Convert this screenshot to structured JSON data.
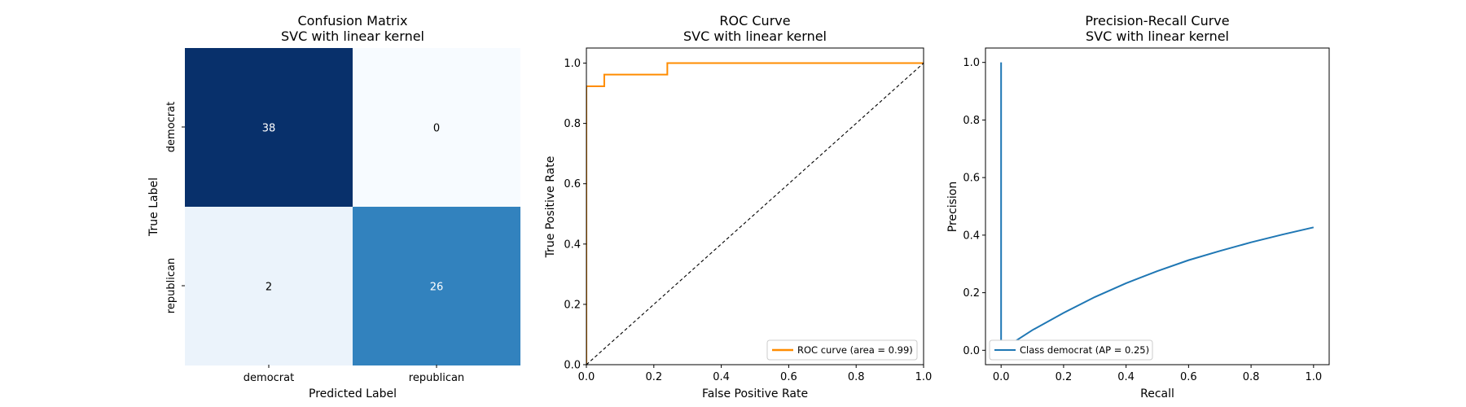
{
  "chart_data": [
    {
      "type": "heatmap",
      "title": "Confusion Matrix",
      "subtitle": "SVC with linear kernel",
      "xlabel": "Predicted Label",
      "ylabel": "True Label",
      "x_categories": [
        "democrat",
        "republican"
      ],
      "y_categories": [
        "democrat",
        "republican"
      ],
      "values": [
        [
          38,
          0
        ],
        [
          2,
          26
        ]
      ],
      "colormap": "Blues",
      "colors": {
        "38": "#08306b",
        "0": "#f7fbff",
        "2": "#ebf3fb",
        "26": "#3282be"
      }
    },
    {
      "type": "line",
      "title": "ROC Curve",
      "subtitle": "SVC with linear kernel",
      "xlabel": "False Positive Rate",
      "ylabel": "True Positive Rate",
      "xlim": [
        0.0,
        1.0
      ],
      "ylim": [
        0.0,
        1.05
      ],
      "xticks": [
        "0.0",
        "0.2",
        "0.4",
        "0.6",
        "0.8",
        "1.0"
      ],
      "yticks": [
        "0.0",
        "0.2",
        "0.4",
        "0.6",
        "0.8",
        "1.0"
      ],
      "series": [
        {
          "name": "ROC curve (area = 0.99)",
          "color": "#ff8c00",
          "x": [
            0.0,
            0.0,
            0.0,
            0.0,
            0.053,
            0.053,
            0.24,
            0.24,
            1.0
          ],
          "y": [
            0.0,
            0.0,
            0.923,
            0.923,
            0.923,
            0.962,
            0.962,
            1.0,
            1.0
          ]
        },
        {
          "name": "",
          "color": "#000000",
          "style": "dashed",
          "x": [
            0.0,
            1.0
          ],
          "y": [
            0.0,
            1.0
          ]
        }
      ],
      "legend_position": "lower-right",
      "grid": false
    },
    {
      "type": "line",
      "title": "Precision-Recall Curve",
      "subtitle": "SVC with linear kernel",
      "xlabel": "Recall",
      "ylabel": "Precision",
      "xlim": [
        -0.05,
        1.05
      ],
      "ylim": [
        -0.05,
        1.05
      ],
      "xticks": [
        "0.0",
        "0.2",
        "0.4",
        "0.6",
        "0.8",
        "1.0"
      ],
      "yticks": [
        "0.0",
        "0.2",
        "0.4",
        "0.6",
        "0.8",
        "1.0"
      ],
      "series": [
        {
          "name": "Class democrat (AP = 0.25)",
          "color": "#1f77b4",
          "x": [
            0.0,
            0.0,
            0.0,
            0.026,
            0.05,
            0.1,
            0.2,
            0.3,
            0.4,
            0.5,
            0.6,
            0.7,
            0.8,
            0.9,
            1.0
          ],
          "y": [
            1.0,
            0.0,
            0.0,
            0.02,
            0.035,
            0.07,
            0.13,
            0.185,
            0.233,
            0.275,
            0.313,
            0.345,
            0.375,
            0.402,
            0.427
          ]
        }
      ],
      "legend_position": "lower-left",
      "grid": false
    }
  ]
}
